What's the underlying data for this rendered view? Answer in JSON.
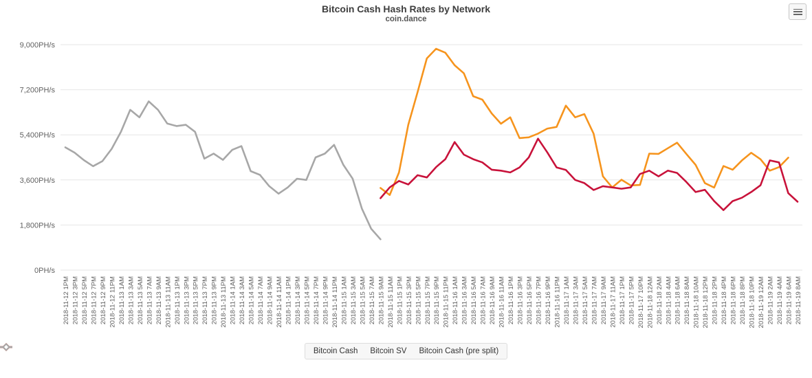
{
  "header": {
    "title": "Bitcoin Cash Hash Rates by Network",
    "subtitle": "coin.dance"
  },
  "menu": {
    "icon": "hamburger-icon",
    "tooltip_label": "Chart context menu"
  },
  "colors": {
    "bitcoin_cash": "#F6941D",
    "bitcoin_sv": "#C8123A",
    "pre_split": "#A7A7A7",
    "gridline": "#E6E6E6",
    "axis_text": "#606060",
    "legend_bg": "#F7F7F7",
    "legend_border": "#DDDDDD"
  },
  "y_axis": {
    "tick_labels": [
      "0PH/s",
      "1,800PH/s",
      "3,600PH/s",
      "5,400PH/s",
      "7,200PH/s",
      "9,000PH/s"
    ],
    "min": 0,
    "max": 9000,
    "step": 1800
  },
  "legend": {
    "items": [
      {
        "label": "Bitcoin Cash",
        "color": "#F6941D"
      },
      {
        "label": "Bitcoin SV",
        "color": "#C8123A"
      },
      {
        "label": "Bitcoin Cash (pre split)",
        "color": "#A7A7A7"
      }
    ]
  },
  "chart_data": {
    "type": "line",
    "title": "Bitcoin Cash Hash Rates by Network",
    "subtitle": "coin.dance",
    "ylabel": "PH/s",
    "ylim": [
      0,
      9000
    ],
    "grid": true,
    "legend_position": "bottom",
    "categories": [
      "2018-11-12 1PM",
      "2018-11-12 3PM",
      "2018-11-12 5PM",
      "2018-11-12 7PM",
      "2018-11-12 9PM",
      "2018-11-12 11PM",
      "2018-11-13 1AM",
      "2018-11-13 3AM",
      "2018-11-13 5AM",
      "2018-11-13 7AM",
      "2018-11-13 9AM",
      "2018-11-13 11AM",
      "2018-11-13 1PM",
      "2018-11-13 3PM",
      "2018-11-13 5PM",
      "2018-11-13 7PM",
      "2018-11-13 9PM",
      "2018-11-13 11PM",
      "2018-11-14 1AM",
      "2018-11-14 3AM",
      "2018-11-14 5AM",
      "2018-11-14 7AM",
      "2018-11-14 9AM",
      "2018-11-14 11AM",
      "2018-11-14 1PM",
      "2018-11-14 3PM",
      "2018-11-14 5PM",
      "2018-11-14 7PM",
      "2018-11-14 9PM",
      "2018-11-14 11PM",
      "2018-11-15 1AM",
      "2018-11-15 3AM",
      "2018-11-15 5AM",
      "2018-11-15 7AM",
      "2018-11-15 9AM",
      "2018-11-15 11AM",
      "2018-11-15 1PM",
      "2018-11-15 3PM",
      "2018-11-15 5PM",
      "2018-11-15 7PM",
      "2018-11-15 9PM",
      "2018-11-15 11PM",
      "2018-11-16 1AM",
      "2018-11-16 3AM",
      "2018-11-16 5AM",
      "2018-11-16 7AM",
      "2018-11-16 9AM",
      "2018-11-16 11AM",
      "2018-11-16 1PM",
      "2018-11-16 3PM",
      "2018-11-16 5PM",
      "2018-11-16 7PM",
      "2018-11-16 9PM",
      "2018-11-16 11PM",
      "2018-11-17 1AM",
      "2018-11-17 3AM",
      "2018-11-17 5AM",
      "2018-11-17 7AM",
      "2018-11-17 9AM",
      "2018-11-17 11AM",
      "2018-11-17 1PM",
      "2018-11-17 5PM",
      "2018-11-17 10PM",
      "2018-11-18 12AM",
      "2018-11-18 2AM",
      "2018-11-18 4AM",
      "2018-11-18 6AM",
      "2018-11-18 8AM",
      "2018-11-18 10AM",
      "2018-11-18 12PM",
      "2018-11-18 2PM",
      "2018-11-18 4PM",
      "2018-11-18 6PM",
      "2018-11-18 8PM",
      "2018-11-18 10PM",
      "2018-11-19 12AM",
      "2018-11-19 2AM",
      "2018-11-19 4AM",
      "2018-11-19 6AM",
      "2018-11-19 8AM"
    ],
    "series": [
      {
        "name": "Bitcoin Cash",
        "color": "#F6941D",
        "values": [
          null,
          null,
          null,
          null,
          null,
          null,
          null,
          null,
          null,
          null,
          null,
          null,
          null,
          null,
          null,
          null,
          null,
          null,
          null,
          null,
          null,
          null,
          null,
          null,
          null,
          null,
          null,
          null,
          null,
          null,
          null,
          null,
          null,
          null,
          3280,
          3000,
          3900,
          5800,
          7100,
          8450,
          8835,
          8680,
          8180,
          7857,
          6942,
          6804,
          6256,
          5845,
          6100,
          5270,
          5300,
          5450,
          5650,
          5715,
          6565,
          6100,
          6230,
          5445,
          3744,
          3300,
          3609,
          3380,
          3400,
          4650,
          4640,
          4865,
          5087,
          4640,
          4200,
          3475,
          3296,
          4155,
          4010,
          4380,
          4684,
          4425,
          3970,
          4110,
          4490,
          null
        ]
      },
      {
        "name": "Bitcoin SV",
        "color": "#C8123A",
        "values": [
          null,
          null,
          null,
          null,
          null,
          null,
          null,
          null,
          null,
          null,
          null,
          null,
          null,
          null,
          null,
          null,
          null,
          null,
          null,
          null,
          null,
          null,
          null,
          null,
          null,
          null,
          null,
          null,
          null,
          null,
          null,
          null,
          null,
          null,
          2870,
          3300,
          3560,
          3420,
          3790,
          3700,
          4110,
          4430,
          5113,
          4610,
          4430,
          4300,
          4010,
          3970,
          3900,
          4100,
          4500,
          5250,
          4700,
          4100,
          4000,
          3600,
          3475,
          3200,
          3350,
          3300,
          3250,
          3300,
          3835,
          3970,
          3744,
          3970,
          3880,
          3520,
          3116,
          3206,
          2756,
          2395,
          2756,
          2890,
          3116,
          3386,
          4380,
          4300,
          3070,
          2730
        ]
      },
      {
        "name": "Bitcoin Cash (pre split)",
        "color": "#A7A7A7",
        "values": [
          4900,
          4690,
          4390,
          4150,
          4350,
          4840,
          5520,
          6400,
          6100,
          6735,
          6400,
          5850,
          5750,
          5800,
          5520,
          4450,
          4650,
          4400,
          4800,
          4950,
          3950,
          3800,
          3350,
          3050,
          3300,
          3650,
          3600,
          4500,
          4650,
          5000,
          4200,
          3650,
          2450,
          1650,
          1230,
          null,
          null,
          null,
          null,
          null,
          null,
          null,
          null,
          null,
          null,
          null,
          null,
          null,
          null,
          null,
          null,
          null,
          null,
          null,
          null,
          null,
          null,
          null,
          null,
          null,
          null,
          null,
          null,
          null,
          null,
          null,
          null,
          null,
          null,
          null,
          null,
          null,
          null,
          null,
          null,
          null,
          null,
          null,
          null,
          null
        ]
      }
    ]
  }
}
